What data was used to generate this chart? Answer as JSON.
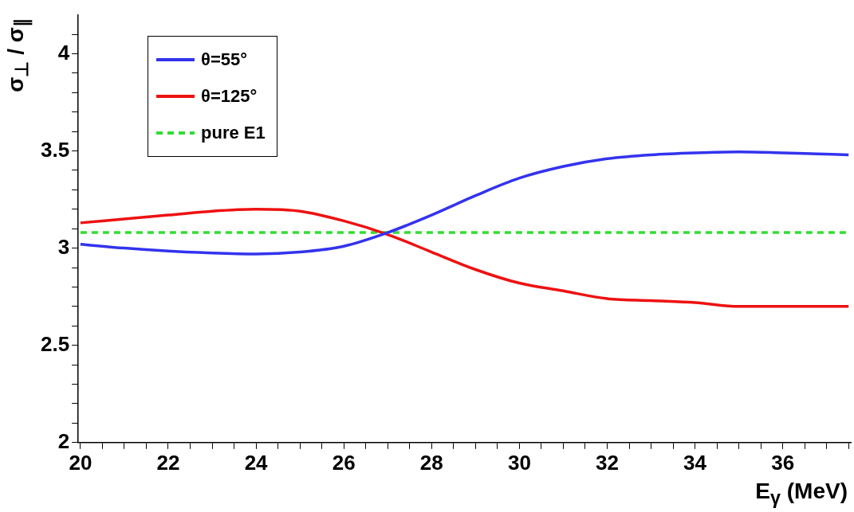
{
  "chart_data": {
    "type": "line",
    "xlabel": "E$_{γ}$ (MeV)",
    "ylabel": "σ$_{⊥}$ / σ$_{∥}$",
    "xlim": [
      19.95,
      37.55
    ],
    "ylim": [
      2,
      4.2
    ],
    "xticks": [
      20,
      {
        "value": 20.5,
        "label": null
      },
      {
        "value": 21,
        "label": null
      },
      {
        "value": 21.5,
        "label": null
      },
      22,
      {
        "value": 22.5,
        "label": null
      },
      {
        "value": 23,
        "label": null
      },
      {
        "value": 23.5,
        "label": null
      },
      24,
      {
        "value": 24.5,
        "label": null
      },
      {
        "value": 25,
        "label": null
      },
      {
        "value": 25.5,
        "label": null
      },
      26,
      {
        "value": 26.5,
        "label": null
      },
      {
        "value": 27,
        "label": null
      },
      {
        "value": 27.5,
        "label": null
      },
      28,
      {
        "value": 28.5,
        "label": null
      },
      {
        "value": 29,
        "label": null
      },
      {
        "value": 29.5,
        "label": null
      },
      30,
      {
        "value": 30.5,
        "label": null
      },
      {
        "value": 31,
        "label": null
      },
      {
        "value": 31.5,
        "label": null
      },
      32,
      {
        "value": 32.5,
        "label": null
      },
      {
        "value": 33,
        "label": null
      },
      {
        "value": 33.5,
        "label": null
      },
      34,
      {
        "value": 34.5,
        "label": null
      },
      {
        "value": 35,
        "label": null
      },
      {
        "value": 35.5,
        "label": null
      },
      36,
      {
        "value": 36.5,
        "label": null
      },
      {
        "value": 37,
        "label": null
      },
      {
        "value": 37.5,
        "label": null
      }
    ],
    "yticks": [
      2,
      {
        "value": 2.1,
        "label": null
      },
      {
        "value": 2.2,
        "label": null
      },
      {
        "value": 2.3,
        "label": null
      },
      {
        "value": 2.4,
        "label": null
      },
      2.5,
      {
        "value": 2.6,
        "label": null
      },
      {
        "value": 2.7,
        "label": null
      },
      {
        "value": 2.8,
        "label": null
      },
      {
        "value": 2.9,
        "label": null
      },
      3,
      {
        "value": 3.1,
        "label": null
      },
      {
        "value": 3.2,
        "label": null
      },
      {
        "value": 3.3,
        "label": null
      },
      {
        "value": 3.4,
        "label": null
      },
      3.5,
      {
        "value": 3.6,
        "label": null
      },
      {
        "value": 3.7,
        "label": null
      },
      {
        "value": 3.8,
        "label": null
      },
      {
        "value": 3.9,
        "label": null
      },
      4,
      {
        "value": 4.1,
        "label": null
      }
    ],
    "grid": false,
    "legend": "top left",
    "marker": "none",
    "series": [
      {
        "name": "θ=55°",
        "color": "#3333ee",
        "x": [
          20,
          21,
          22,
          23,
          24,
          25,
          26,
          27,
          28,
          29,
          30,
          31,
          32,
          33,
          34,
          35,
          36,
          37.5
        ],
        "values": [
          3.02,
          3.0,
          2.985,
          2.975,
          2.97,
          2.98,
          3.01,
          3.08,
          3.17,
          3.27,
          3.36,
          3.42,
          3.46,
          3.48,
          3.49,
          3.495,
          3.49,
          3.48
        ]
      },
      {
        "name": "θ=125°",
        "color": "#ee1111",
        "x": [
          20,
          21,
          22,
          23,
          24,
          25,
          26,
          27,
          28,
          29,
          30,
          31,
          32,
          33,
          34,
          35,
          36,
          37.5
        ],
        "values": [
          3.13,
          3.15,
          3.17,
          3.19,
          3.2,
          3.19,
          3.14,
          3.07,
          2.98,
          2.89,
          2.82,
          2.78,
          2.74,
          2.73,
          2.72,
          2.7,
          2.7,
          2.7
        ]
      },
      {
        "name": "pure E1",
        "color": "#33dd33",
        "line_style": "dashed",
        "x": [
          20,
          37.5
        ],
        "values": [
          3.08,
          3.08
        ]
      }
    ]
  }
}
